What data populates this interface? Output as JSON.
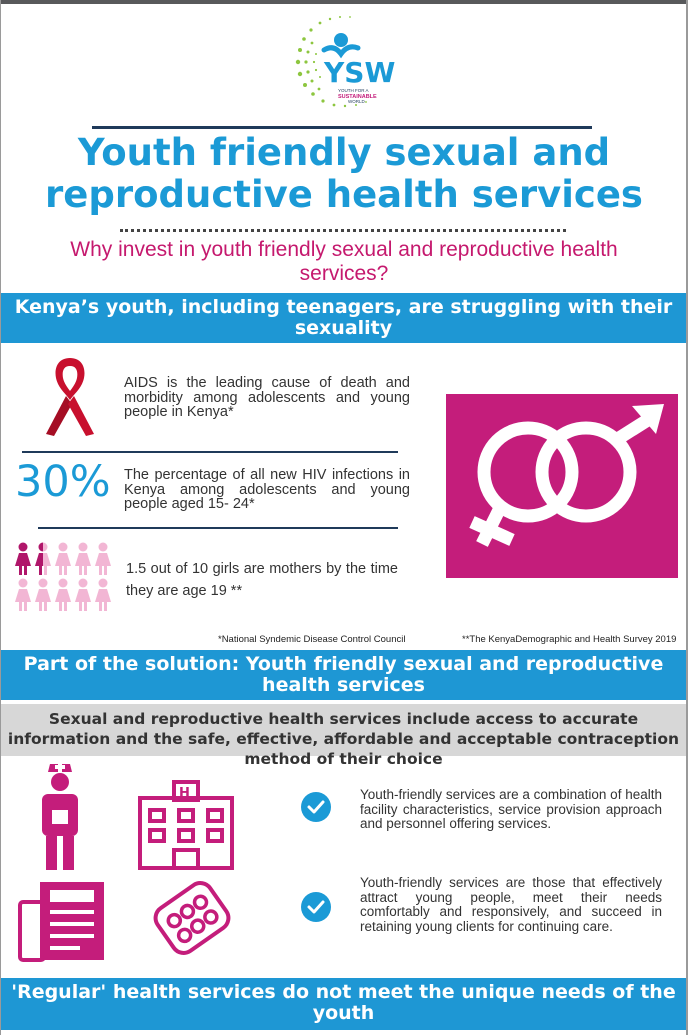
{
  "brand": {
    "logo_text": "YSW",
    "logo_tagline": "YOUTH FOR A SUSTAINABLE WORLD",
    "accent_blue": "#1b9ad6",
    "accent_magenta": "#c41d7b"
  },
  "header": {
    "title": "Youth friendly sexual and reproductive health services",
    "subtitle": "Why invest in youth friendly sexual and reproductive health services?"
  },
  "section1": {
    "heading": "Kenya’s youth, including teenagers, are struggling with their sexuality",
    "facts": [
      {
        "icon": "red-ribbon-icon",
        "text": "AIDS is the leading cause of death and morbidity among adolescents and young people in Kenya*"
      },
      {
        "stat": "30%",
        "text": "The percentage of all new HIV infections in Kenya among adolescents and young people aged 15- 24*"
      },
      {
        "icon": "girls-pictogram-icon",
        "text": "1.5 out of 10 girls are mothers by the time they are age 19 **"
      }
    ],
    "sources": [
      "*National Syndemic Disease Control Council",
      "**The KenyaDemographic and Health Survey 2019"
    ],
    "pictogram_highlighted_fraction": 0.15
  },
  "section2": {
    "heading": "Part of the solution: Youth friendly sexual and reproductive health services",
    "definition": "Sexual and reproductive health services include access to accurate information and the safe, effective, affordable and acceptable contraception method of their choice",
    "points": [
      "Youth-friendly services are a combination of health facility characteristics, service provision approach and personnel offering services.",
      "Youth-friendly services are those that effectively attract young people, meet their needs comfortably and responsively, and succeed in retaining young clients for continuing care."
    ]
  },
  "footer": {
    "heading": "'Regular' health services do not meet the unique needs of the youth"
  }
}
